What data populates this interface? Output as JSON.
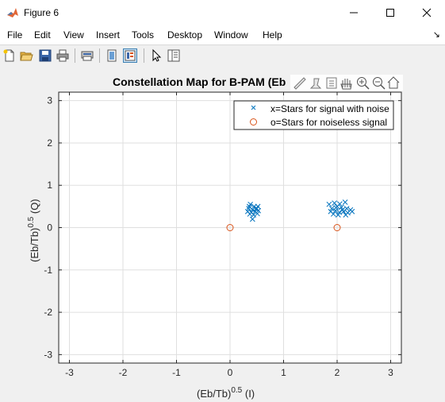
{
  "window": {
    "title": "Figure 6"
  },
  "menu": [
    "File",
    "Edit",
    "View",
    "Insert",
    "Tools",
    "Desktop",
    "Window",
    "Help"
  ],
  "toolbar": {
    "buttons": [
      "new-figure",
      "open-file",
      "save",
      "print",
      "print-preview",
      "hide-plot-tools",
      "show-plot-tools",
      "edit-plot",
      "open-property-inspector"
    ]
  },
  "axes_toolbar": [
    "brush",
    "data-cursor",
    "insert-legend",
    "pan",
    "zoom-in",
    "zoom-out",
    "home"
  ],
  "colors": {
    "noisy": "#0072bd",
    "noiseless": "#d95319",
    "grid": "#dfdfdf"
  },
  "chart_data": {
    "type": "scatter",
    "title": "Constellation Map for B-PAM (Eb",
    "xlabel": {
      "base": "(Eb/Tb)",
      "exp": "0.5",
      "suffix": " (I)"
    },
    "ylabel": {
      "base": "(Eb/Tb)",
      "exp": "0.5",
      "suffix": " (Q)"
    },
    "xlim": [
      -3.2,
      3.2
    ],
    "ylim": [
      -3.2,
      3.2
    ],
    "xticks": [
      -3,
      -2,
      -1,
      0,
      1,
      2,
      3
    ],
    "yticks": [
      -3,
      -2,
      -1,
      0,
      1,
      2,
      3
    ],
    "grid": true,
    "legend_position": "top-right",
    "series": [
      {
        "name": "x=Stars for signal with noise",
        "marker": "x",
        "points": [
          [
            0.38,
            0.55
          ],
          [
            0.45,
            0.5
          ],
          [
            0.52,
            0.5
          ],
          [
            0.35,
            0.45
          ],
          [
            0.42,
            0.42
          ],
          [
            0.48,
            0.44
          ],
          [
            0.33,
            0.38
          ],
          [
            0.4,
            0.36
          ],
          [
            0.47,
            0.38
          ],
          [
            0.53,
            0.4
          ],
          [
            0.37,
            0.32
          ],
          [
            0.44,
            0.3
          ],
          [
            0.51,
            0.33
          ],
          [
            0.42,
            0.2
          ],
          [
            0.5,
            0.45
          ],
          [
            0.36,
            0.5
          ],
          [
            1.85,
            0.55
          ],
          [
            1.95,
            0.58
          ],
          [
            2.05,
            0.56
          ],
          [
            2.15,
            0.6
          ],
          [
            1.9,
            0.45
          ],
          [
            2.0,
            0.5
          ],
          [
            2.08,
            0.48
          ],
          [
            2.18,
            0.45
          ],
          [
            2.25,
            0.42
          ],
          [
            1.88,
            0.38
          ],
          [
            1.97,
            0.4
          ],
          [
            2.04,
            0.36
          ],
          [
            2.12,
            0.38
          ],
          [
            2.2,
            0.35
          ],
          [
            1.93,
            0.32
          ],
          [
            2.02,
            0.3
          ],
          [
            2.1,
            0.42
          ],
          [
            2.28,
            0.38
          ],
          [
            2.16,
            0.3
          ],
          [
            1.98,
            0.47
          ]
        ]
      },
      {
        "name": "o=Stars for noiseless signal",
        "marker": "o",
        "points": [
          [
            0,
            0
          ],
          [
            2,
            0
          ]
        ]
      }
    ]
  }
}
